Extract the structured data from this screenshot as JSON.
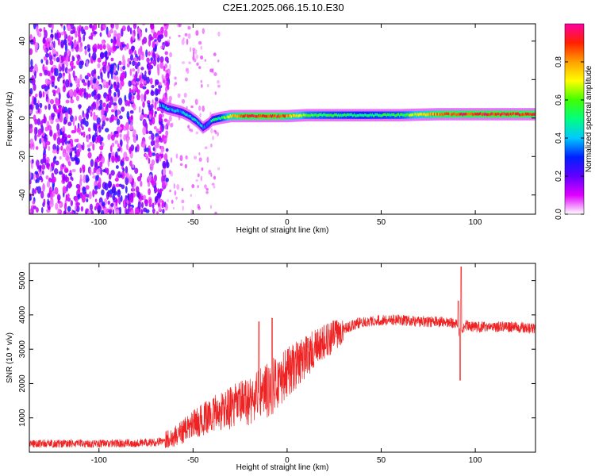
{
  "figure": {
    "title": "C2E1.2025.066.15.10.E30"
  },
  "chart_data": [
    {
      "type": "heatmap",
      "panel": "top",
      "xlabel": "Height of straight line (km)",
      "ylabel": "Frequency (Hz)",
      "xlim": [
        -137,
        132
      ],
      "ylim": [
        -50,
        49
      ],
      "xticks": [
        -100,
        -50,
        0,
        50,
        100
      ],
      "yticks": [
        -40,
        -20,
        0,
        20,
        40
      ],
      "colorbar": {
        "label": "Normalized spectral amplitude",
        "range": [
          0,
          1
        ],
        "ticks": [
          0.0,
          0.2,
          0.4,
          0.6,
          0.8
        ],
        "colors": [
          "#ffffff",
          "#e000ff",
          "#6000ff",
          "#0020ff",
          "#00c8ff",
          "#00ff80",
          "#40ff00",
          "#ffff00",
          "#ffa000",
          "#ff2000",
          "#ff00a0"
        ]
      },
      "ridge": {
        "description_values": "dominant frequency vs height",
        "x": [
          -68,
          -64,
          -60,
          -56,
          -52,
          -48,
          -45,
          -42,
          -40,
          -36,
          -30,
          -25,
          -20,
          -15,
          -10,
          -5,
          0,
          10,
          20,
          40,
          60,
          80,
          100,
          132
        ],
        "y": [
          7,
          5,
          4,
          3,
          1,
          -2,
          -5,
          -3,
          -1,
          0,
          1,
          1,
          1,
          1,
          1,
          1,
          1,
          1.5,
          1.5,
          1.5,
          1.5,
          2,
          2,
          2
        ],
        "amplitude": [
          0.35,
          0.4,
          0.35,
          0.4,
          0.4,
          0.45,
          0.35,
          0.35,
          0.45,
          0.5,
          0.75,
          0.85,
          0.9,
          0.9,
          0.9,
          0.9,
          0.8,
          0.6,
          0.55,
          0.5,
          0.55,
          0.85,
          0.9,
          0.9
        ]
      },
      "noise_region_x": [
        -137,
        -66
      ]
    },
    {
      "type": "line",
      "panel": "bottom",
      "xlabel": "Height of straight line (km)",
      "ylabel": "SNR (10 * v/v)",
      "xlim": [
        -137,
        132
      ],
      "ylim": [
        0,
        5500
      ],
      "xticks": [
        -100,
        -50,
        0,
        50,
        100
      ],
      "yticks": [
        1000,
        2000,
        3000,
        4000,
        5000
      ],
      "color": "#ee2222",
      "envelope": {
        "x": [
          -137,
          -100,
          -70,
          -60,
          -50,
          -40,
          -30,
          -20,
          -10,
          0,
          10,
          20,
          30,
          40,
          50,
          60,
          70,
          80,
          90,
          92,
          95,
          100,
          110,
          120,
          132
        ],
        "y": [
          250,
          250,
          280,
          450,
          800,
          1100,
          1300,
          1500,
          1800,
          2300,
          2800,
          3200,
          3600,
          3800,
          3850,
          3850,
          3800,
          3800,
          3750,
          3400,
          3700,
          3650,
          3650,
          3650,
          3600
        ]
      },
      "spikes": [
        {
          "x": -15,
          "y": 3800
        },
        {
          "x": -8,
          "y": 3900
        },
        {
          "x": 91,
          "y": 4400
        },
        {
          "x": 92.5,
          "y": 5400
        },
        {
          "x": 92,
          "y": 2100
        }
      ]
    }
  ]
}
